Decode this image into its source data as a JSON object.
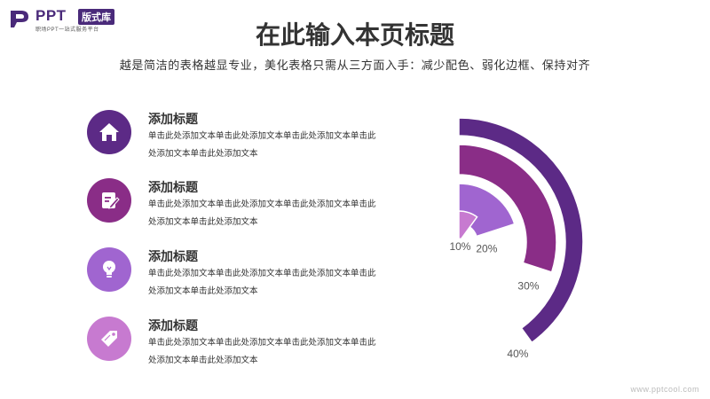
{
  "logo": {
    "brand": "PPT",
    "badge": "版式库",
    "tagline": "职场PPT一站式服务平台"
  },
  "header": {
    "title": "在此输入本页标题",
    "subtitle": "越是简洁的表格越显专业，美化表格只需从三方面入手：减少配色、弱化边框、保持对齐"
  },
  "items": [
    {
      "icon": "home-icon",
      "color": "#5c2a86",
      "heading": "添加标题",
      "text": "单击此处添加文本单击此处添加文本单击此处添加文本单击此处添加文本单击此处添加文本"
    },
    {
      "icon": "edit-note-icon",
      "color": "#8a2d87",
      "heading": "添加标题",
      "text": "单击此处添加文本单击此处添加文本单击此处添加文本单击此处添加文本单击此处添加文本"
    },
    {
      "icon": "lightbulb-icon",
      "color": "#a065d0",
      "heading": "添加标题",
      "text": "单击此处添加文本单击此处添加文本单击此处添加文本单击此处添加文本单击此处添加文本"
    },
    {
      "icon": "tag-icon",
      "color": "#c77ad0",
      "heading": "添加标题",
      "text": "单击此处添加文本单击此处添加文本单击此处添加文本单击此处添加文本单击此处添加文本"
    }
  ],
  "chart_data": {
    "type": "radial-bar",
    "series": [
      {
        "label": "40%",
        "value": 40,
        "color": "#5c2a86"
      },
      {
        "label": "30%",
        "value": 30,
        "color": "#8a2d87"
      },
      {
        "label": "20%",
        "value": 20,
        "color": "#a065d0"
      },
      {
        "label": "10%",
        "value": 10,
        "color": "#c77ad0"
      }
    ]
  },
  "watermark": "www.pptcool.com"
}
